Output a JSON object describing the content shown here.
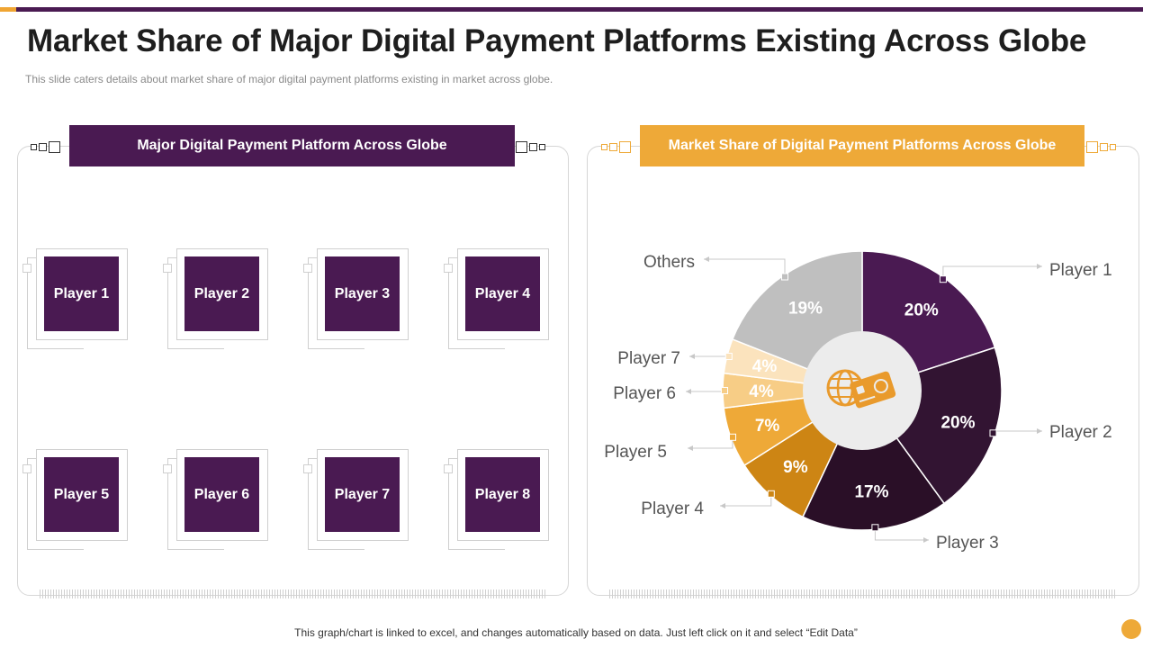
{
  "title": "Market Share of Major Digital Payment Platforms Existing Across Globe",
  "subtitle": "This slide caters details about market share of major digital payment platforms existing in market across globe.",
  "left_panel": {
    "header": "Major Digital Payment Platform Across Globe",
    "players": [
      "Player 1",
      "Player 2",
      "Player 3",
      "Player 4",
      "Player 5",
      "Player 6",
      "Player 7",
      "Player 8"
    ]
  },
  "right_panel": {
    "header": "Market Share of Digital Payment Platforms Across Globe",
    "center_icon": "globe-card-icon"
  },
  "footnote": "This graph/chart is linked to excel,  and changes automatically based on data. Just left click on it and select “Edit Data”",
  "colors": {
    "purple": "#4a1a52",
    "orange": "#eea938"
  },
  "chart_data": {
    "type": "pie",
    "variant": "donut",
    "title": "Market Share of Digital Payment Platforms Across Globe",
    "categories": [
      "Player 1",
      "Player 2",
      "Player 3",
      "Player 4",
      "Player 5",
      "Player 6",
      "Player 7",
      "Others"
    ],
    "values": [
      20,
      20,
      17,
      9,
      7,
      4,
      4,
      19
    ],
    "labels": [
      "20%",
      "20%",
      "17%",
      "9%",
      "7%",
      "4%",
      "4%",
      "19%"
    ],
    "colors": [
      "#4a1a52",
      "#321432",
      "#2a0f27",
      "#cd8514",
      "#eea938",
      "#f7cd86",
      "#fbe3bd",
      "#bfbfbf"
    ]
  }
}
